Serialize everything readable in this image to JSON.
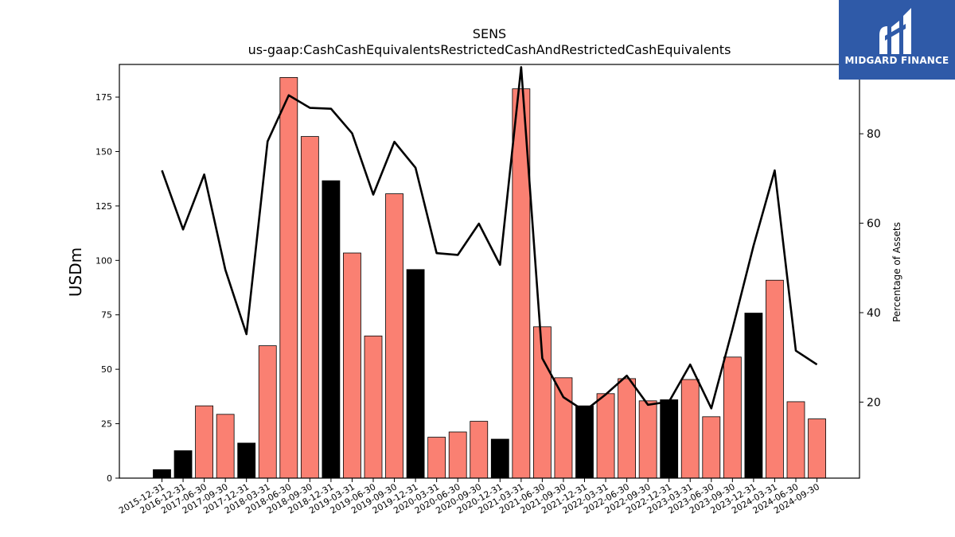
{
  "chart_data": {
    "type": "bar",
    "title": "SENS",
    "subtitle": "us-gaap:CashCashEquivalentsRestrictedCashAndRestrictedCashEquivalents",
    "ylabel": "USDm",
    "y2label": "Percentage of Assets",
    "ylim": [
      0,
      190
    ],
    "y2lim": [
      3.0,
      95.5
    ],
    "yticks": [
      0,
      25,
      50,
      75,
      100,
      125,
      150,
      175
    ],
    "y2ticks": [
      20,
      40,
      60,
      80
    ],
    "grid": false,
    "categories": [
      "2015-12-31",
      "2016-12-31",
      "2017-06-30",
      "2017-09-30",
      "2017-12-31",
      "2018-03-31",
      "2018-06-30",
      "2018-09-30",
      "2018-12-31",
      "2019-03-31",
      "2019-06-30",
      "2019-09-30",
      "2019-12-31",
      "2020-03-31",
      "2020-06-30",
      "2020-09-30",
      "2020-12-31",
      "2021-03-31",
      "2021-06-30",
      "2021-09-30",
      "2021-12-31",
      "2022-03-31",
      "2022-06-30",
      "2022-09-30",
      "2022-12-31",
      "2023-03-31",
      "2023-06-30",
      "2023-09-30",
      "2023-12-31",
      "2024-03-31",
      "2024-06-30",
      "2024-09-30"
    ],
    "series": [
      {
        "type": "bar",
        "values": [
          3.9,
          12.6,
          33.2,
          29.3,
          16.1,
          60.8,
          184.0,
          156.9,
          136.6,
          103.4,
          65.3,
          130.6,
          95.8,
          18.8,
          21.2,
          26.1,
          17.9,
          178.8,
          69.5,
          46.1,
          33.2,
          38.8,
          45.7,
          35.5,
          36.0,
          45.3,
          28.2,
          55.6,
          75.8,
          90.9,
          35.1,
          27.2
        ],
        "colors": [
          "#000000",
          "#000000",
          "#fa8072",
          "#fa8072",
          "#000000",
          "#fa8072",
          "#fa8072",
          "#fa8072",
          "#000000",
          "#fa8072",
          "#fa8072",
          "#fa8072",
          "#000000",
          "#fa8072",
          "#fa8072",
          "#fa8072",
          "#000000",
          "#fa8072",
          "#fa8072",
          "#fa8072",
          "#000000",
          "#fa8072",
          "#fa8072",
          "#fa8072",
          "#000000",
          "#fa8072",
          "#fa8072",
          "#fa8072",
          "#000000",
          "#fa8072",
          "#fa8072",
          "#fa8072"
        ]
      },
      {
        "type": "line",
        "axis": "right",
        "color": "#000000",
        "values": [
          71.8,
          58.6,
          70.9,
          49.6,
          35.2,
          78.3,
          88.6,
          85.8,
          85.6,
          80.1,
          66.4,
          78.2,
          72.4,
          53.3,
          52.9,
          59.9,
          50.7,
          94.9,
          29.8,
          21.1,
          18.0,
          21.7,
          25.9,
          19.4,
          20.1,
          28.4,
          18.6,
          36.3,
          55.0,
          71.8,
          31.5,
          28.4
        ]
      }
    ]
  },
  "logo": {
    "text": "MIDGARD FINANCE"
  }
}
